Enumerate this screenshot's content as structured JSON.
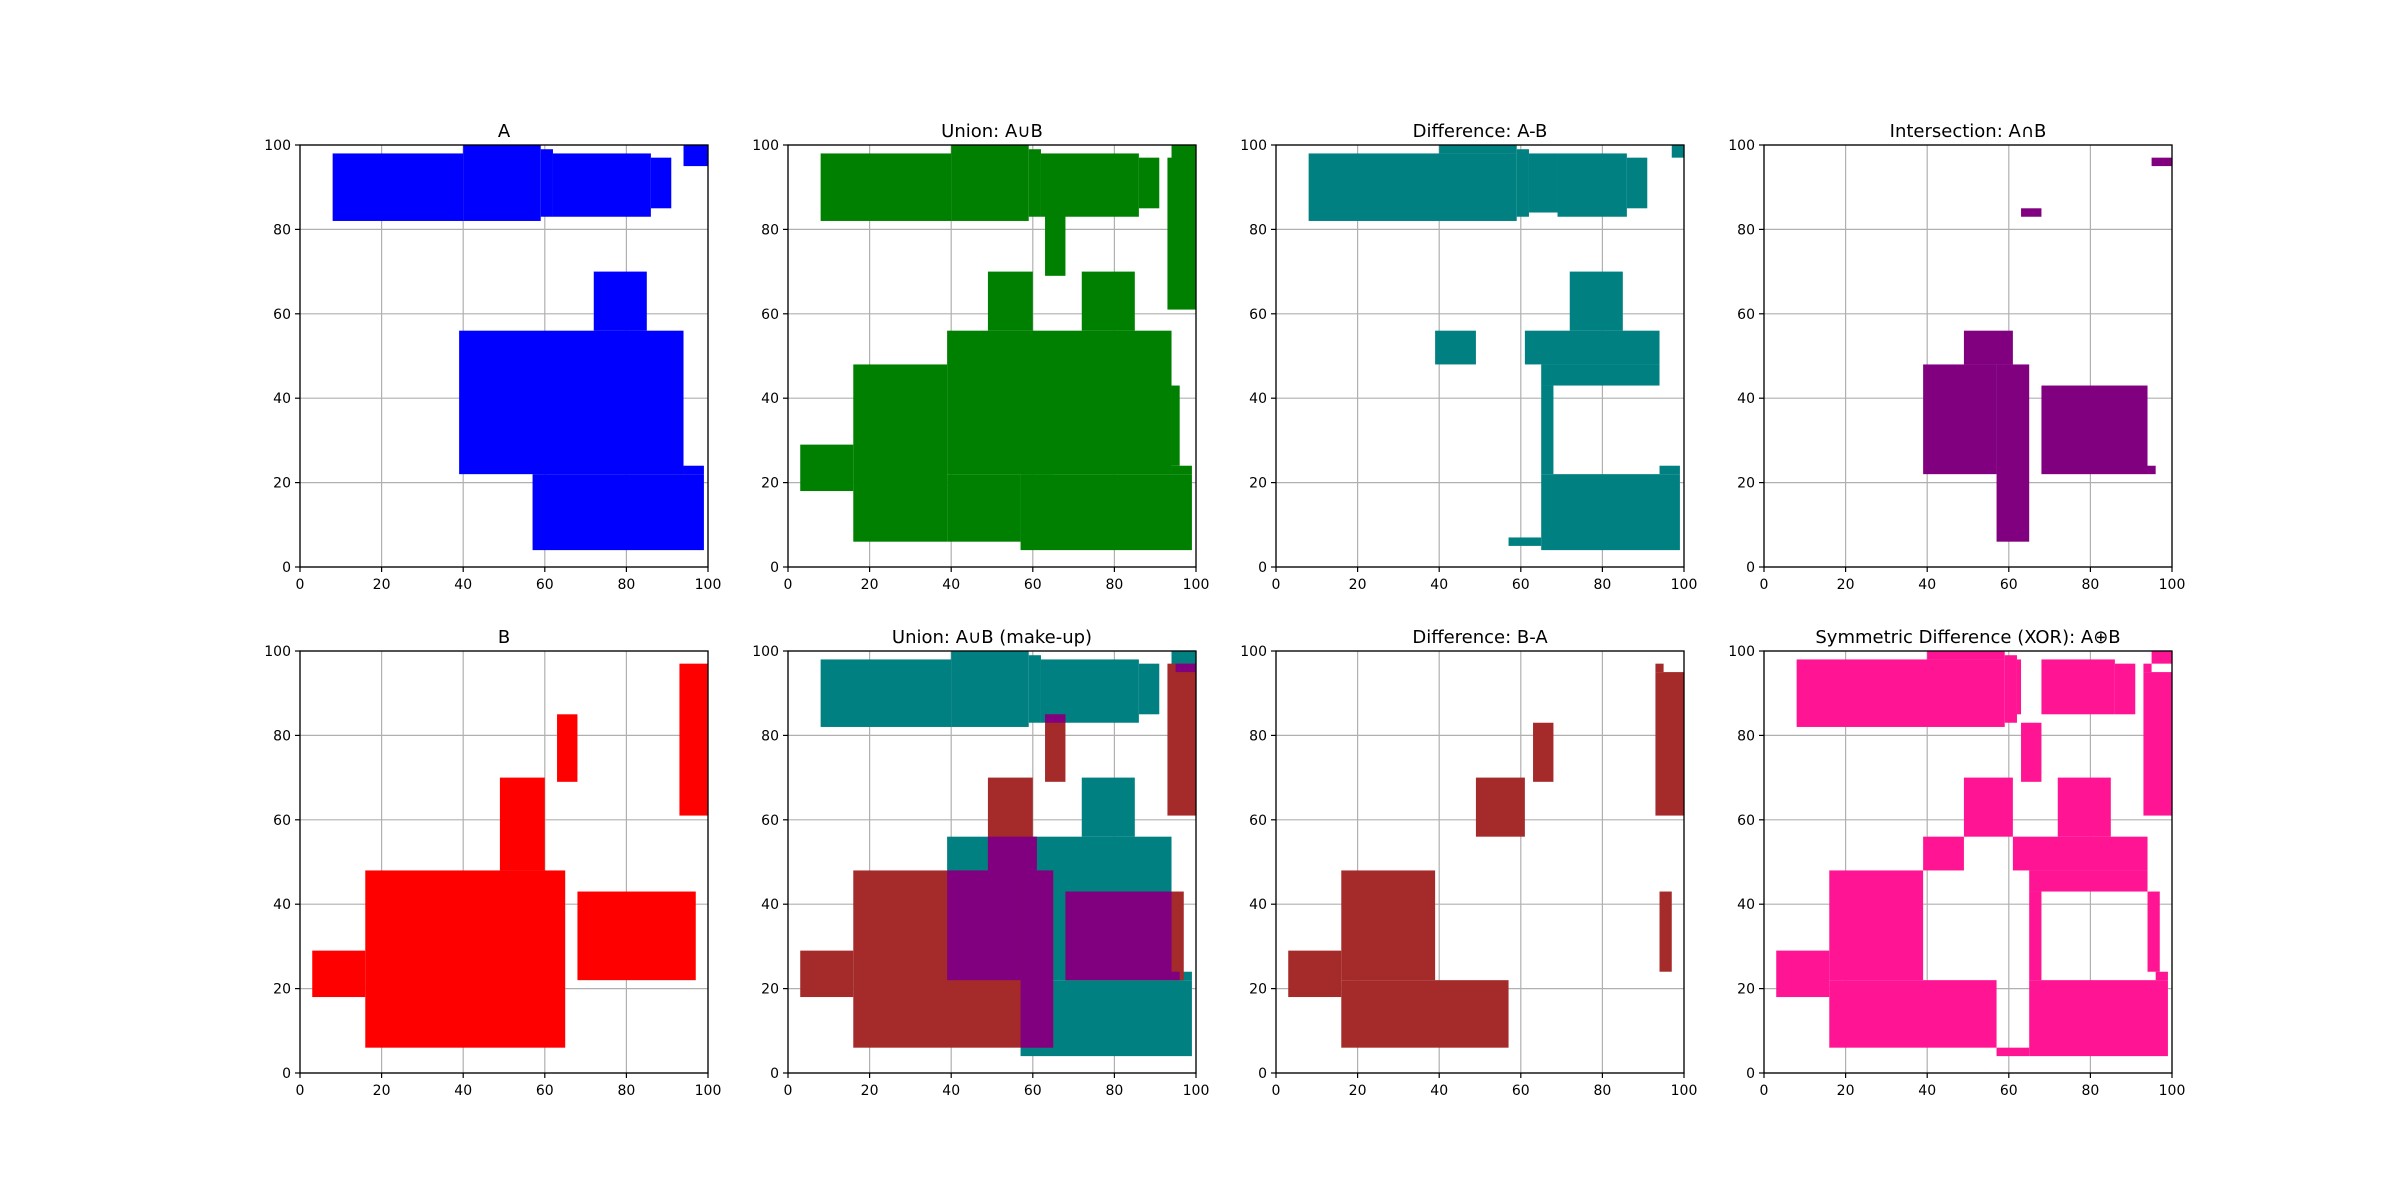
{
  "chart_data": [
    {
      "type": "rectangles",
      "title": "A",
      "color": "#0000ff",
      "xlim": [
        0,
        100
      ],
      "ylim": [
        0,
        100
      ],
      "grid": true,
      "xticks": [
        0,
        20,
        40,
        60,
        80,
        100
      ],
      "yticks": [
        0,
        20,
        40,
        60,
        80,
        100
      ],
      "rects": [
        [
          8,
          82,
          40,
          98
        ],
        [
          40,
          82,
          59,
          100
        ],
        [
          59,
          83,
          62,
          99
        ],
        [
          62,
          83,
          86,
          98
        ],
        [
          86,
          85,
          91,
          97
        ],
        [
          94,
          95,
          100,
          100
        ],
        [
          72,
          56,
          85,
          70
        ],
        [
          39,
          22,
          94,
          56
        ],
        [
          57,
          4,
          99,
          22
        ],
        [
          94,
          22,
          99,
          24
        ]
      ]
    },
    {
      "type": "rectangles",
      "title": "Union: A∪B",
      "color": "#008000",
      "xlim": [
        0,
        100
      ],
      "ylim": [
        0,
        100
      ],
      "grid": true,
      "xticks": [
        0,
        20,
        40,
        60,
        80,
        100
      ],
      "yticks": [
        0,
        20,
        40,
        60,
        80,
        100
      ],
      "rects": [
        [
          8,
          82,
          40,
          98
        ],
        [
          40,
          82,
          59,
          100
        ],
        [
          59,
          83,
          62,
          99
        ],
        [
          62,
          83,
          86,
          98
        ],
        [
          86,
          85,
          91,
          97
        ],
        [
          94,
          95,
          100,
          100
        ],
        [
          93,
          61,
          100,
          97
        ],
        [
          63,
          69,
          68,
          85
        ],
        [
          49,
          56,
          60,
          70
        ],
        [
          72,
          56,
          85,
          70
        ],
        [
          39,
          22,
          94,
          56
        ],
        [
          57,
          4,
          99,
          22
        ],
        [
          94,
          22,
          99,
          24
        ],
        [
          16,
          6,
          39,
          48
        ],
        [
          39,
          6,
          57,
          22
        ],
        [
          3,
          18,
          16,
          29
        ],
        [
          94,
          24,
          96,
          43
        ],
        [
          57,
          22,
          65,
          48
        ]
      ]
    },
    {
      "type": "rectangles",
      "title": "Difference: A-B",
      "color": "#008080",
      "xlim": [
        0,
        100
      ],
      "ylim": [
        0,
        100
      ],
      "grid": true,
      "xticks": [
        0,
        20,
        40,
        60,
        80,
        100
      ],
      "yticks": [
        0,
        20,
        40,
        60,
        80,
        100
      ],
      "rects": [
        [
          8,
          82,
          59,
          98
        ],
        [
          59,
          83,
          62,
          99
        ],
        [
          62,
          84,
          69,
          98
        ],
        [
          69,
          83,
          86,
          98
        ],
        [
          86,
          85,
          91,
          97
        ],
        [
          40,
          98,
          59,
          100
        ],
        [
          97,
          97,
          100,
          100
        ],
        [
          72,
          56,
          85,
          70
        ],
        [
          39,
          48,
          49,
          56
        ],
        [
          61,
          48,
          94,
          56
        ],
        [
          65,
          43,
          94,
          48
        ],
        [
          65,
          22,
          68,
          43
        ],
        [
          65,
          4,
          99,
          22
        ],
        [
          94,
          22,
          99,
          24
        ],
        [
          57,
          5,
          65,
          7
        ]
      ]
    },
    {
      "type": "rectangles",
      "title": "Intersection: A∩B",
      "color": "#800080",
      "xlim": [
        0,
        100
      ],
      "ylim": [
        0,
        100
      ],
      "grid": true,
      "xticks": [
        0,
        20,
        40,
        60,
        80,
        100
      ],
      "yticks": [
        0,
        20,
        40,
        60,
        80,
        100
      ],
      "rects": [
        [
          63,
          83,
          68,
          85
        ],
        [
          95,
          95,
          100,
          97
        ],
        [
          49,
          48,
          61,
          56
        ],
        [
          39,
          22,
          57,
          48
        ],
        [
          57,
          6,
          65,
          48
        ],
        [
          68,
          22,
          94,
          43
        ],
        [
          94,
          22,
          96,
          24
        ]
      ]
    },
    {
      "type": "rectangles",
      "title": "B",
      "color": "#ff0000",
      "xlim": [
        0,
        100
      ],
      "ylim": [
        0,
        100
      ],
      "grid": true,
      "xticks": [
        0,
        20,
        40,
        60,
        80,
        100
      ],
      "yticks": [
        0,
        20,
        40,
        60,
        80,
        100
      ],
      "rects": [
        [
          63,
          69,
          68,
          85
        ],
        [
          93,
          61,
          100,
          97
        ],
        [
          49,
          48,
          60,
          70
        ],
        [
          16,
          6,
          65,
          48
        ],
        [
          3,
          18,
          16,
          29
        ],
        [
          68,
          22,
          97,
          43
        ]
      ]
    },
    {
      "type": "rectangles",
      "title": "Union: A∪B (make-up)",
      "xlim": [
        0,
        100
      ],
      "ylim": [
        0,
        100
      ],
      "grid": true,
      "xticks": [
        0,
        20,
        40,
        60,
        80,
        100
      ],
      "yticks": [
        0,
        20,
        40,
        60,
        80,
        100
      ],
      "layers": [
        {
          "color": "#008080",
          "rects": [
            [
              8,
              82,
              40,
              98
            ],
            [
              40,
              82,
              59,
              100
            ],
            [
              59,
              83,
              62,
              99
            ],
            [
              62,
              83,
              86,
              98
            ],
            [
              86,
              85,
              91,
              97
            ],
            [
              94,
              95,
              100,
              100
            ],
            [
              72,
              56,
              85,
              70
            ],
            [
              39,
              22,
              94,
              56
            ],
            [
              57,
              4,
              99,
              22
            ],
            [
              94,
              22,
              99,
              24
            ]
          ]
        },
        {
          "color": "#a52a2a",
          "rects": [
            [
              63,
              69,
              68,
              85
            ],
            [
              93,
              61,
              100,
              97
            ],
            [
              49,
              48,
              60,
              70
            ],
            [
              16,
              6,
              65,
              48
            ],
            [
              3,
              18,
              16,
              29
            ],
            [
              68,
              22,
              97,
              43
            ]
          ]
        },
        {
          "color": "#800080",
          "rects": [
            [
              63,
              83,
              68,
              85
            ],
            [
              95,
              95,
              100,
              97
            ],
            [
              49,
              48,
              61,
              56
            ],
            [
              39,
              22,
              57,
              48
            ],
            [
              57,
              6,
              65,
              48
            ],
            [
              68,
              22,
              94,
              43
            ],
            [
              94,
              22,
              96,
              24
            ]
          ]
        }
      ]
    },
    {
      "type": "rectangles",
      "title": "Difference: B-A",
      "color": "#a52a2a",
      "xlim": [
        0,
        100
      ],
      "ylim": [
        0,
        100
      ],
      "grid": true,
      "xticks": [
        0,
        20,
        40,
        60,
        80,
        100
      ],
      "yticks": [
        0,
        20,
        40,
        60,
        80,
        100
      ],
      "rects": [
        [
          63,
          69,
          68,
          83
        ],
        [
          93,
          61,
          100,
          95
        ],
        [
          93,
          95,
          95,
          97
        ],
        [
          49,
          56,
          61,
          70
        ],
        [
          16,
          22,
          39,
          48
        ],
        [
          16,
          6,
          57,
          22
        ],
        [
          3,
          18,
          16,
          29
        ],
        [
          94,
          24,
          97,
          43
        ]
      ]
    },
    {
      "type": "rectangles",
      "title": "Symmetric Difference (XOR): A⊕B",
      "color": "#ff1493",
      "xlim": [
        0,
        100
      ],
      "ylim": [
        0,
        100
      ],
      "grid": true,
      "xticks": [
        0,
        20,
        40,
        60,
        80,
        100
      ],
      "yticks": [
        0,
        20,
        40,
        60,
        80,
        100
      ],
      "rects": [
        [
          8,
          82,
          59,
          98
        ],
        [
          59,
          83,
          62,
          99
        ],
        [
          62,
          85,
          63,
          98
        ],
        [
          68,
          85,
          86,
          98
        ],
        [
          86,
          85,
          91,
          97
        ],
        [
          40,
          98,
          59,
          100
        ],
        [
          95,
          97,
          100,
          100
        ],
        [
          93,
          61,
          100,
          95
        ],
        [
          93,
          95,
          95,
          97
        ],
        [
          63,
          69,
          68,
          83
        ],
        [
          49,
          56,
          61,
          70
        ],
        [
          72,
          56,
          85,
          70
        ],
        [
          39,
          48,
          49,
          56
        ],
        [
          61,
          48,
          94,
          56
        ],
        [
          65,
          43,
          94,
          48
        ],
        [
          94,
          24,
          97,
          43
        ],
        [
          65,
          22,
          68,
          43
        ],
        [
          16,
          22,
          39,
          48
        ],
        [
          16,
          6,
          57,
          22
        ],
        [
          3,
          18,
          16,
          29
        ],
        [
          65,
          4,
          99,
          22
        ],
        [
          96,
          22,
          99,
          24
        ],
        [
          57,
          4,
          65,
          6
        ]
      ]
    }
  ]
}
